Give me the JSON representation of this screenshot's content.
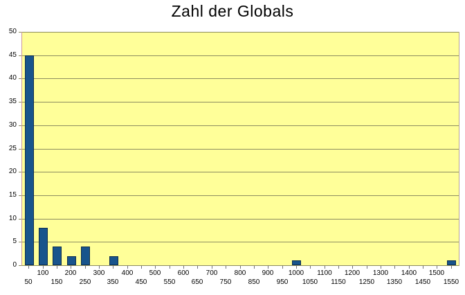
{
  "chart_data": {
    "type": "bar",
    "title": "Zahl der Globals",
    "xlabel": "",
    "ylabel": "",
    "categories": [
      50,
      100,
      150,
      200,
      250,
      300,
      350,
      400,
      450,
      500,
      550,
      600,
      650,
      700,
      750,
      800,
      850,
      900,
      950,
      1000,
      1050,
      1100,
      1150,
      1200,
      1250,
      1300,
      1350,
      1400,
      1450,
      1500,
      1550
    ],
    "values": [
      45,
      8,
      4,
      2,
      4,
      0,
      2,
      0,
      0,
      0,
      0,
      0,
      0,
      0,
      0,
      0,
      0,
      0,
      0,
      1,
      0,
      0,
      0,
      0,
      0,
      0,
      0,
      0,
      0,
      0,
      1
    ],
    "ylim": [
      0,
      50
    ],
    "yticks": [
      0,
      5,
      10,
      15,
      20,
      25,
      30,
      35,
      40,
      45,
      50
    ],
    "grid": true,
    "legend_position": "none",
    "x_labels_staggered": true,
    "colors": {
      "bar_fill": "#18548c",
      "bar_border": "#0c2d4e",
      "plot_background": "#ffff99",
      "gridline": "#8d8d60",
      "axis_left": "#cc9999",
      "text": "#000000",
      "page_background": "#ffffff"
    }
  }
}
